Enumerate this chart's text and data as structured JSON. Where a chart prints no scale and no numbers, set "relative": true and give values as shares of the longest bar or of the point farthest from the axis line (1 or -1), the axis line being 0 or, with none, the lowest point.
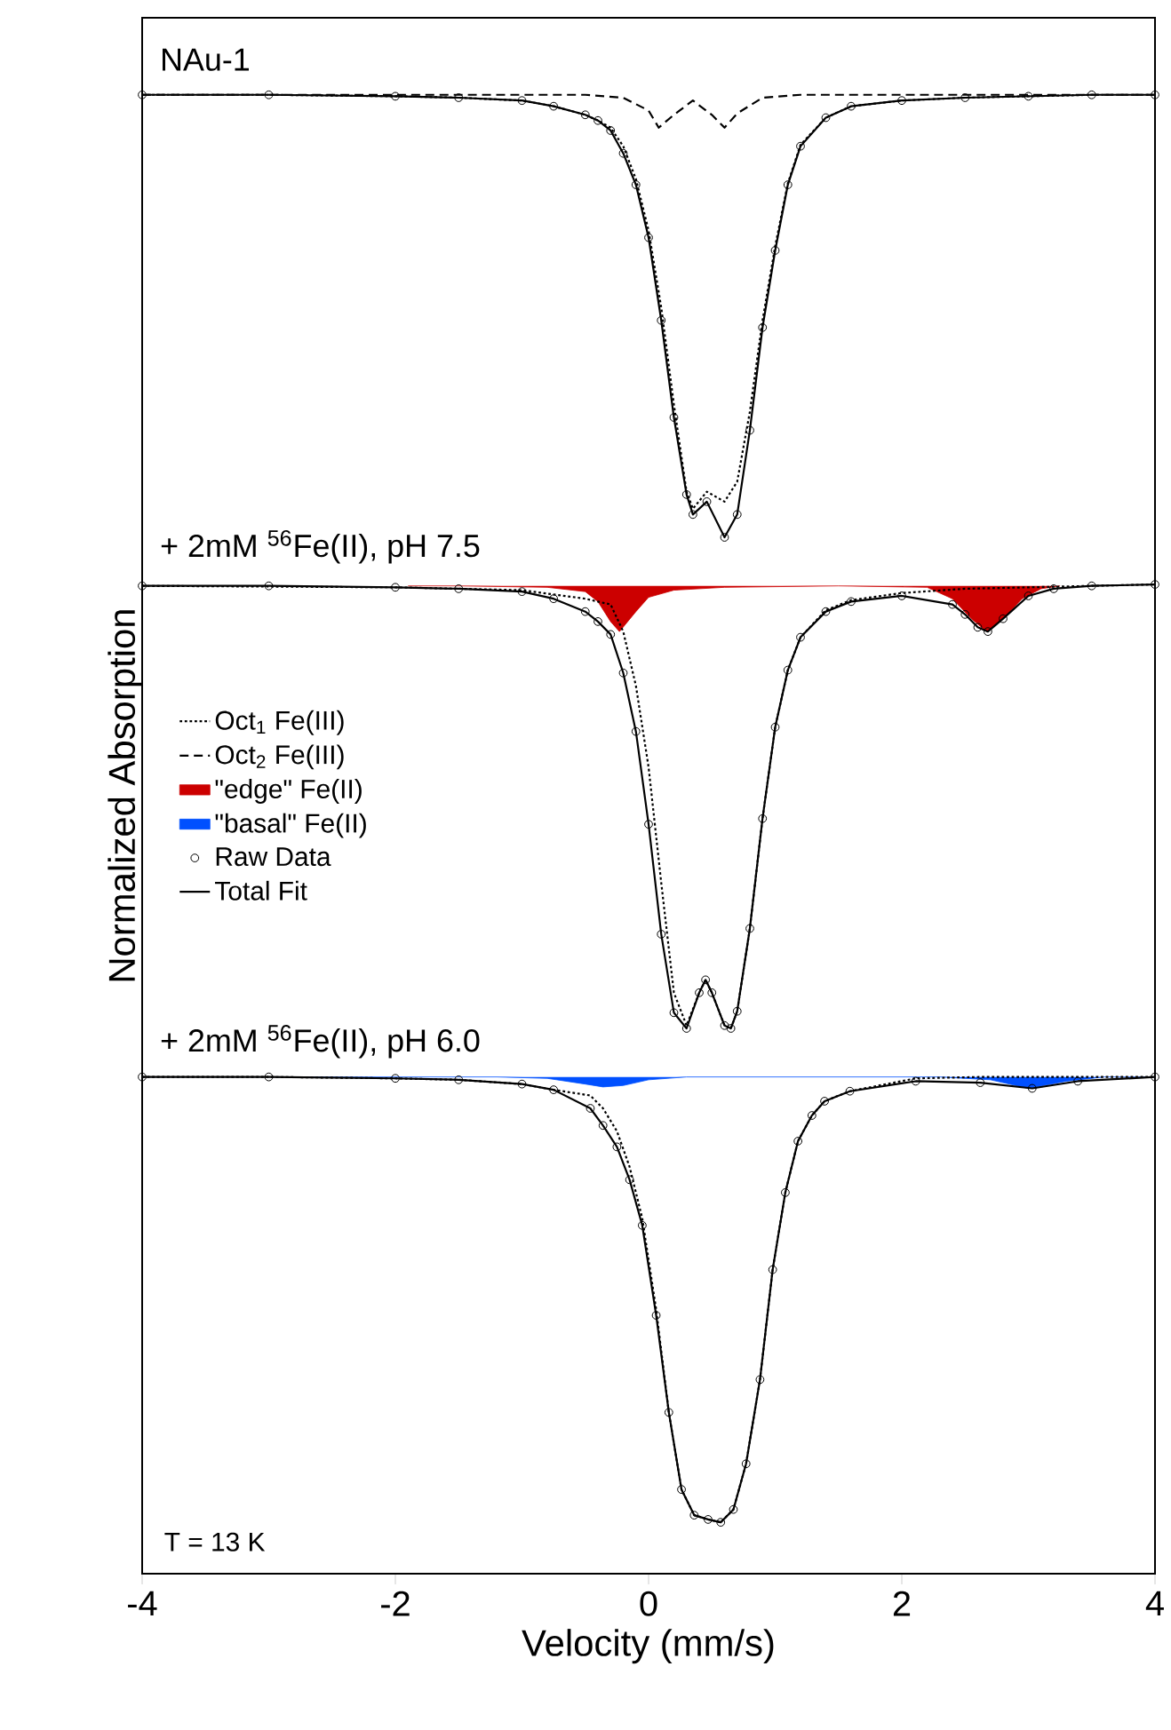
{
  "chart_data": {
    "type": "line",
    "xlabel": "Velocity (mm/s)",
    "ylabel": "Normalized Absorption",
    "relative": true,
    "xlim": [
      -4,
      4
    ],
    "xticks": [
      -4,
      -2,
      0,
      2,
      4
    ],
    "tick_labels": "x",
    "legend": "left",
    "annotations": [
      "NAu-1",
      "+ 2mM $^{56}$Fe(II), pH 7.5",
      "+ 2mM $^{56}$Fe(II), pH 6.0",
      "T = 13 K"
    ],
    "series": [
      {
        "name": "Oct$_{1}$ Fe(III)",
        "line_style": "dotted",
        "color": "#000000",
        "x": [
          -4,
          -3,
          -2,
          -1.5,
          -1,
          -0.75,
          -0.5,
          -0.4,
          -0.3,
          -0.2,
          -0.1,
          0,
          0.1,
          0.2,
          0.3,
          0.35,
          0.46,
          0.6,
          0.7,
          0.8,
          0.9,
          1.0,
          1.1,
          1.2,
          1.4,
          1.6,
          2,
          2.5,
          3,
          3.5,
          4
        ],
        "values": [
          1.0,
          1.0,
          0.999,
          0.998,
          0.996,
          0.992,
          0.986,
          0.982,
          0.977,
          0.964,
          0.941,
          0.905,
          0.851,
          0.783,
          0.722,
          0.71,
          0.722,
          0.715,
          0.729,
          0.778,
          0.842,
          0.894,
          0.938,
          0.965,
          0.984,
          0.992,
          0.996,
          0.998,
          0.999,
          1.0,
          1.0
        ]
      },
      {
        "name": "Oct$_{2}$ Fe(III)",
        "line_style": "dashed",
        "color": "#000000",
        "x": [
          -4,
          -0.5,
          -0.2,
          0,
          0.08,
          0.2,
          0.35,
          0.5,
          0.6,
          0.7,
          0.9,
          1.2,
          4
        ],
        "values": [
          1.0,
          1.0,
          0.998,
          0.989,
          0.977,
          0.986,
          0.996,
          0.986,
          0.977,
          0.987,
          0.998,
          1.0,
          1.0
        ]
      },
      {
        "name": "\"edge\" Fe(II)",
        "type": "area",
        "color": "#cc0000",
        "x": [
          -1.9,
          -1.5,
          -0.8,
          -0.5,
          -0.4,
          -0.3,
          -0.23,
          -0.1,
          0,
          0.2,
          0.6,
          1.5,
          2.2,
          2.4,
          2.55,
          2.67,
          2.8,
          2.95,
          3.1,
          3.25
        ],
        "values": [
          0.656,
          0.656,
          0.655,
          0.652,
          0.645,
          0.631,
          0.624,
          0.638,
          0.648,
          0.653,
          0.655,
          0.656,
          0.655,
          0.647,
          0.633,
          0.624,
          0.633,
          0.647,
          0.654,
          0.656
        ]
      },
      {
        "name": "\"basal\" Fe(II)",
        "type": "area",
        "color": "#0050ff",
        "x": [
          -4,
          -1.2,
          -0.8,
          -0.5,
          -0.36,
          -0.2,
          0,
          0.3,
          0.6,
          2.3,
          2.7,
          3.0,
          3.3,
          3.6,
          4
        ],
        "values": [
          0.312,
          0.312,
          0.311,
          0.307,
          0.305,
          0.306,
          0.31,
          0.312,
          0.312,
          0.312,
          0.31,
          0.304,
          0.309,
          0.312,
          0.312
        ]
      },
      {
        "name": "Raw Data",
        "type": "scatter",
        "marker": "circle",
        "color": "#000000",
        "x": [
          -4,
          -3,
          -2,
          -1.5,
          -1,
          -0.75,
          -0.5,
          -0.4,
          -0.3,
          -0.2,
          -0.1,
          0,
          0.1,
          0.2,
          0.3,
          0.35,
          0.46,
          0.6,
          0.7,
          0.8,
          0.9,
          1.0,
          1.1,
          1.2,
          1.4,
          1.6,
          2,
          2.5,
          3,
          3.5,
          4
        ],
        "values": [
          1.0,
          1.0,
          0.999,
          0.998,
          0.996,
          0.992,
          0.986,
          0.982,
          0.975,
          0.959,
          0.937,
          0.9,
          0.842,
          0.774,
          0.72,
          0.706,
          0.715,
          0.69,
          0.706,
          0.765,
          0.837,
          0.891,
          0.937,
          0.964,
          0.984,
          0.992,
          0.996,
          0.998,
          0.999,
          1.0,
          1.0
        ]
      },
      {
        "name": "Total Fit",
        "line_style": "solid",
        "color": "#000000",
        "x": [
          -4,
          -3,
          -2,
          -1.5,
          -1,
          -0.75,
          -0.5,
          -0.4,
          -0.3,
          -0.2,
          -0.1,
          0,
          0.1,
          0.2,
          0.3,
          0.35,
          0.46,
          0.6,
          0.7,
          0.8,
          0.9,
          1.0,
          1.1,
          1.2,
          1.4,
          1.6,
          2,
          2.5,
          3,
          3.5,
          4
        ],
        "values": [
          1.0,
          1.0,
          0.999,
          0.998,
          0.996,
          0.992,
          0.986,
          0.982,
          0.975,
          0.959,
          0.937,
          0.9,
          0.842,
          0.774,
          0.72,
          0.706,
          0.715,
          0.69,
          0.706,
          0.765,
          0.837,
          0.891,
          0.937,
          0.964,
          0.984,
          0.992,
          0.996,
          0.998,
          0.999,
          1.0,
          1.0
        ]
      },
      {
        "line_style": "dotted",
        "color": "#000000",
        "x": [
          -4,
          -2,
          -1,
          -0.5,
          -0.4,
          -0.3,
          -0.2,
          -0.1,
          0,
          0.1,
          0.2,
          0.3,
          0.4,
          0.45,
          0.5,
          0.6,
          0.65,
          0.7,
          0.8,
          0.9,
          1.0,
          1.1,
          1.2,
          1.4,
          1.6,
          2,
          2.5,
          3,
          4
        ],
        "values": [
          0.656,
          0.655,
          0.653,
          0.647,
          0.645,
          0.643,
          0.624,
          0.586,
          0.529,
          0.448,
          0.371,
          0.348,
          0.371,
          0.38,
          0.371,
          0.348,
          0.346,
          0.358,
          0.416,
          0.493,
          0.557,
          0.597,
          0.62,
          0.639,
          0.646,
          0.651,
          0.654,
          0.655,
          0.657
        ]
      },
      {
        "type": "scatter",
        "marker": "circle",
        "color": "#000000",
        "x": [
          -4,
          -3,
          -2,
          -1.5,
          -1,
          -0.75,
          -0.5,
          -0.4,
          -0.3,
          -0.2,
          -0.1,
          0,
          0.1,
          0.2,
          0.3,
          0.4,
          0.45,
          0.5,
          0.6,
          0.65,
          0.7,
          0.8,
          0.9,
          1.0,
          1.1,
          1.2,
          1.4,
          1.6,
          2,
          2.4,
          2.5,
          2.6,
          2.68,
          2.8,
          3.0,
          3.2,
          3.5,
          4
        ],
        "values": [
          0.656,
          0.656,
          0.655,
          0.654,
          0.652,
          0.647,
          0.638,
          0.631,
          0.622,
          0.595,
          0.554,
          0.489,
          0.412,
          0.357,
          0.346,
          0.371,
          0.38,
          0.371,
          0.348,
          0.346,
          0.358,
          0.416,
          0.493,
          0.557,
          0.597,
          0.62,
          0.638,
          0.645,
          0.649,
          0.643,
          0.636,
          0.627,
          0.624,
          0.633,
          0.649,
          0.654,
          0.656,
          0.657
        ]
      },
      {
        "line_style": "solid",
        "color": "#000000",
        "x": [
          -4,
          -3,
          -2,
          -1.5,
          -1,
          -0.75,
          -0.5,
          -0.4,
          -0.3,
          -0.2,
          -0.1,
          0,
          0.1,
          0.2,
          0.3,
          0.4,
          0.45,
          0.5,
          0.6,
          0.65,
          0.7,
          0.8,
          0.9,
          1.0,
          1.1,
          1.2,
          1.4,
          1.6,
          2,
          2.4,
          2.5,
          2.6,
          2.68,
          2.8,
          3.0,
          3.2,
          3.5,
          4
        ],
        "values": [
          0.656,
          0.656,
          0.655,
          0.654,
          0.652,
          0.647,
          0.638,
          0.631,
          0.622,
          0.595,
          0.554,
          0.489,
          0.412,
          0.357,
          0.346,
          0.371,
          0.38,
          0.371,
          0.348,
          0.346,
          0.358,
          0.416,
          0.493,
          0.557,
          0.597,
          0.62,
          0.638,
          0.645,
          0.649,
          0.643,
          0.636,
          0.627,
          0.624,
          0.633,
          0.649,
          0.654,
          0.656,
          0.657
        ]
      },
      {
        "line_style": "dotted",
        "color": "#000000",
        "x": [
          -4,
          -3,
          -2,
          -1.5,
          -1,
          -0.75,
          -0.46,
          -0.36,
          -0.25,
          -0.15,
          -0.05,
          0.06,
          0.16,
          0.26,
          0.36,
          0.47,
          0.57,
          0.67,
          0.77,
          0.88,
          0.98,
          1.08,
          1.18,
          1.29,
          1.39,
          1.59,
          2.11,
          2.62,
          3.03,
          3.39,
          4
        ],
        "values": [
          0.312,
          0.312,
          0.311,
          0.31,
          0.307,
          0.303,
          0.299,
          0.29,
          0.274,
          0.249,
          0.213,
          0.149,
          0.077,
          0.023,
          0.005,
          0.002,
          0.0,
          0.009,
          0.041,
          0.1,
          0.177,
          0.231,
          0.267,
          0.285,
          0.295,
          0.302,
          0.311,
          0.312,
          0.312,
          0.312,
          0.312
        ]
      },
      {
        "type": "scatter",
        "marker": "circle",
        "color": "#000000",
        "x": [
          -4,
          -3,
          -2,
          -1.5,
          -1,
          -0.75,
          -0.46,
          -0.36,
          -0.25,
          -0.15,
          -0.05,
          0.06,
          0.16,
          0.26,
          0.36,
          0.47,
          0.57,
          0.67,
          0.77,
          0.88,
          0.98,
          1.08,
          1.18,
          1.29,
          1.39,
          1.59,
          2.11,
          2.62,
          3.03,
          3.39,
          4
        ],
        "values": [
          0.312,
          0.312,
          0.311,
          0.31,
          0.307,
          0.303,
          0.29,
          0.278,
          0.263,
          0.24,
          0.208,
          0.145,
          0.077,
          0.023,
          0.005,
          0.002,
          0.0,
          0.009,
          0.041,
          0.1,
          0.177,
          0.231,
          0.267,
          0.285,
          0.295,
          0.302,
          0.309,
          0.308,
          0.304,
          0.309,
          0.312
        ]
      },
      {
        "line_style": "solid",
        "color": "#000000",
        "x": [
          -4,
          -3,
          -2,
          -1.5,
          -1,
          -0.75,
          -0.46,
          -0.36,
          -0.25,
          -0.15,
          -0.05,
          0.06,
          0.16,
          0.26,
          0.36,
          0.47,
          0.57,
          0.67,
          0.77,
          0.88,
          0.98,
          1.08,
          1.18,
          1.29,
          1.39,
          1.59,
          2.11,
          2.62,
          3.03,
          3.39,
          4
        ],
        "values": [
          0.312,
          0.312,
          0.311,
          0.31,
          0.307,
          0.303,
          0.29,
          0.278,
          0.263,
          0.24,
          0.208,
          0.145,
          0.077,
          0.023,
          0.005,
          0.002,
          0.0,
          0.009,
          0.041,
          0.1,
          0.177,
          0.231,
          0.267,
          0.285,
          0.295,
          0.302,
          0.309,
          0.308,
          0.304,
          0.309,
          0.312
        ]
      }
    ]
  }
}
